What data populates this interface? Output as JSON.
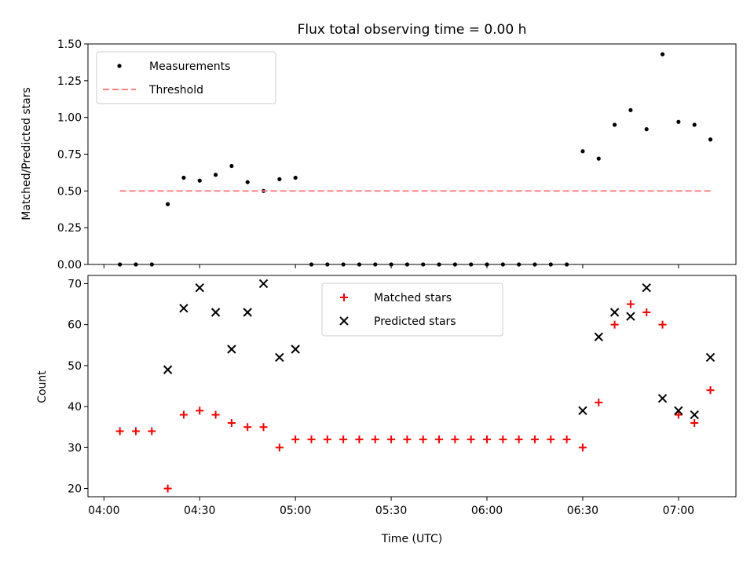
{
  "chart_data": [
    {
      "type": "scatter",
      "title": "Flux total observing time = 0.00 h",
      "xlabel": "",
      "ylabel": "Matched/Predicted stars",
      "ylim": [
        0,
        1.5
      ],
      "yticks": [
        "0.00",
        "0.25",
        "0.50",
        "0.75",
        "1.00",
        "1.25",
        "1.50"
      ],
      "xlim": [
        "03:55",
        "07:18"
      ],
      "grid": false,
      "legend_position": "top-left",
      "series": [
        {
          "name": "Measurements",
          "marker": "dot",
          "color": "#000000",
          "points": [
            [
              "04:05",
              0.0
            ],
            [
              "04:10",
              0.0
            ],
            [
              "04:15",
              0.0
            ],
            [
              "04:20",
              0.41
            ],
            [
              "04:25",
              0.59
            ],
            [
              "04:30",
              0.57
            ],
            [
              "04:35",
              0.61
            ],
            [
              "04:40",
              0.67
            ],
            [
              "04:45",
              0.56
            ],
            [
              "04:50",
              0.5
            ],
            [
              "04:55",
              0.58
            ],
            [
              "05:00",
              0.59
            ],
            [
              "05:05",
              0.0
            ],
            [
              "05:10",
              0.0
            ],
            [
              "05:15",
              0.0
            ],
            [
              "05:20",
              0.0
            ],
            [
              "05:25",
              0.0
            ],
            [
              "05:30",
              0.0
            ],
            [
              "05:35",
              0.0
            ],
            [
              "05:40",
              0.0
            ],
            [
              "05:45",
              0.0
            ],
            [
              "05:50",
              0.0
            ],
            [
              "05:55",
              0.0
            ],
            [
              "06:00",
              0.0
            ],
            [
              "06:05",
              0.0
            ],
            [
              "06:10",
              0.0
            ],
            [
              "06:15",
              0.0
            ],
            [
              "06:20",
              0.0
            ],
            [
              "06:25",
              0.0
            ],
            [
              "06:30",
              0.77
            ],
            [
              "06:35",
              0.72
            ],
            [
              "06:40",
              0.95
            ],
            [
              "06:45",
              1.05
            ],
            [
              "06:50",
              0.92
            ],
            [
              "06:55",
              1.43
            ],
            [
              "07:00",
              0.97
            ],
            [
              "07:05",
              0.95
            ],
            [
              "07:10",
              0.85
            ]
          ]
        },
        {
          "name": "Threshold",
          "marker": "dashed-line",
          "color": "#ff7f7f",
          "points": [
            [
              "04:05",
              0.5
            ],
            [
              "07:10",
              0.5
            ]
          ]
        }
      ]
    },
    {
      "type": "scatter",
      "title": "",
      "xlabel": "Time (UTC)",
      "ylabel": "Count",
      "ylim": [
        18,
        72
      ],
      "yticks": [
        "20",
        "30",
        "40",
        "50",
        "60",
        "70"
      ],
      "xlim": [
        "03:55",
        "07:18"
      ],
      "xticks": [
        "04:00",
        "04:30",
        "05:00",
        "05:30",
        "06:00",
        "06:30",
        "07:00"
      ],
      "grid": false,
      "legend_position": "top-center",
      "series": [
        {
          "name": "Matched stars",
          "marker": "plus",
          "color": "#ff0000",
          "points": [
            [
              "04:05",
              34
            ],
            [
              "04:10",
              34
            ],
            [
              "04:15",
              34
            ],
            [
              "04:20",
              20
            ],
            [
              "04:25",
              38
            ],
            [
              "04:30",
              39
            ],
            [
              "04:35",
              38
            ],
            [
              "04:40",
              36
            ],
            [
              "04:45",
              35
            ],
            [
              "04:50",
              35
            ],
            [
              "04:55",
              30
            ],
            [
              "05:00",
              32
            ],
            [
              "05:05",
              32
            ],
            [
              "05:10",
              32
            ],
            [
              "05:15",
              32
            ],
            [
              "05:20",
              32
            ],
            [
              "05:25",
              32
            ],
            [
              "05:30",
              32
            ],
            [
              "05:35",
              32
            ],
            [
              "05:40",
              32
            ],
            [
              "05:45",
              32
            ],
            [
              "05:50",
              32
            ],
            [
              "05:55",
              32
            ],
            [
              "06:00",
              32
            ],
            [
              "06:05",
              32
            ],
            [
              "06:10",
              32
            ],
            [
              "06:15",
              32
            ],
            [
              "06:20",
              32
            ],
            [
              "06:25",
              32
            ],
            [
              "06:30",
              30
            ],
            [
              "06:35",
              41
            ],
            [
              "06:40",
              60
            ],
            [
              "06:45",
              65
            ],
            [
              "06:50",
              63
            ],
            [
              "06:55",
              60
            ],
            [
              "07:00",
              38
            ],
            [
              "07:05",
              36
            ],
            [
              "07:10",
              44
            ]
          ]
        },
        {
          "name": "Predicted stars",
          "marker": "x",
          "color": "#000000",
          "points": [
            [
              "04:20",
              49
            ],
            [
              "04:25",
              64
            ],
            [
              "04:30",
              69
            ],
            [
              "04:35",
              63
            ],
            [
              "04:40",
              54
            ],
            [
              "04:45",
              63
            ],
            [
              "04:50",
              70
            ],
            [
              "04:55",
              52
            ],
            [
              "05:00",
              54
            ],
            [
              "06:30",
              39
            ],
            [
              "06:35",
              57
            ],
            [
              "06:40",
              63
            ],
            [
              "06:45",
              62
            ],
            [
              "06:50",
              69
            ],
            [
              "06:55",
              42
            ],
            [
              "07:00",
              39
            ],
            [
              "07:05",
              38
            ],
            [
              "07:10",
              52
            ]
          ]
        }
      ]
    }
  ]
}
